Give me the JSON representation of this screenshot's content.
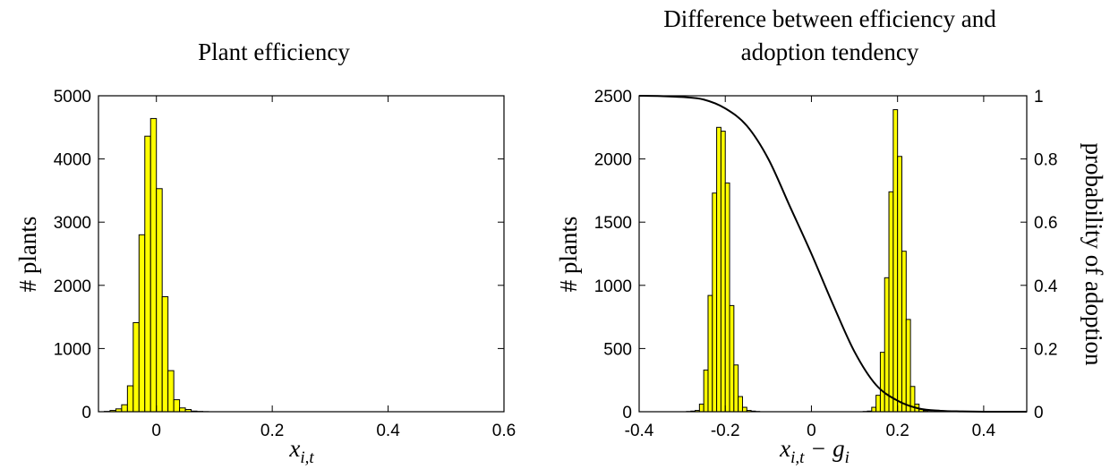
{
  "colors": {
    "bar_fill": "#FFFF00",
    "bar_edge": "#000000",
    "curve": "#000000",
    "background": "#FFFFFF"
  },
  "chart_data": [
    {
      "type": "bar",
      "title": "Plant efficiency",
      "xlabel": "x_{i,t}",
      "xlabel_main": "x",
      "xlabel_sub": "i,t",
      "ylabel": "# plants",
      "xlim": [
        -0.1,
        0.6
      ],
      "ylim": [
        0,
        5000
      ],
      "xticks": [
        "0",
        "0.2",
        "0.4",
        "0.6"
      ],
      "xtick_values": [
        0,
        0.2,
        0.4,
        0.6
      ],
      "yticks": [
        "0",
        "1000",
        "2000",
        "3000",
        "4000",
        "5000"
      ],
      "ytick_values": [
        0,
        1000,
        2000,
        3000,
        4000,
        5000
      ],
      "bin_width": 0.01,
      "bin_centers": [
        -0.085,
        -0.075,
        -0.065,
        -0.055,
        -0.045,
        -0.035,
        -0.025,
        -0.015,
        -0.005,
        0.005,
        0.015,
        0.025,
        0.035,
        0.045,
        0.055,
        0.065,
        0.075,
        0.085
      ],
      "values": [
        5,
        20,
        45,
        110,
        410,
        1410,
        2800,
        4360,
        4640,
        3530,
        1820,
        650,
        190,
        60,
        35,
        10,
        5,
        2
      ],
      "grid": false
    },
    {
      "type": "bar",
      "title": "Difference between efficiency and adoption tendency",
      "title_lines": [
        "Difference between efficiency and",
        "adoption tendency"
      ],
      "xlabel": "x_{i,t} − g_i",
      "xlabel_main": "x",
      "xlabel_sub": "i,t",
      "xlabel_op": " − g",
      "xlabel_sub2": "i",
      "ylabel": "# plants",
      "ylabel_right": "probability of adoption",
      "xlim": [
        -0.4,
        0.5
      ],
      "ylim": [
        0,
        2500
      ],
      "ylim_right": [
        0,
        1
      ],
      "xticks": [
        "-0.4",
        "-0.2",
        "0",
        "0.2",
        "0.4"
      ],
      "xtick_values": [
        -0.4,
        -0.2,
        0,
        0.2,
        0.4
      ],
      "yticks": [
        "0",
        "500",
        "1000",
        "1500",
        "2000",
        "2500"
      ],
      "ytick_values": [
        0,
        500,
        1000,
        1500,
        2000,
        2500
      ],
      "yticks_right": [
        "0",
        "0.2",
        "0.4",
        "0.6",
        "0.8",
        "1"
      ],
      "ytick_values_right": [
        0,
        0.2,
        0.4,
        0.6,
        0.8,
        1
      ],
      "bin_width": 0.01,
      "bin_centers": [
        -0.285,
        -0.275,
        -0.265,
        -0.255,
        -0.245,
        -0.235,
        -0.225,
        -0.215,
        -0.205,
        -0.195,
        -0.185,
        -0.175,
        -0.165,
        -0.155,
        -0.145,
        -0.135,
        -0.125,
        0.125,
        0.135,
        0.145,
        0.155,
        0.165,
        0.175,
        0.185,
        0.195,
        0.205,
        0.215,
        0.225,
        0.235,
        0.245,
        0.255,
        0.265,
        0.275
      ],
      "values": [
        2,
        5,
        10,
        60,
        330,
        920,
        1730,
        2250,
        2220,
        1810,
        840,
        370,
        120,
        35,
        10,
        5,
        2,
        2,
        5,
        35,
        130,
        470,
        1060,
        1740,
        2390,
        2020,
        1270,
        730,
        200,
        60,
        20,
        8,
        2
      ],
      "curve": {
        "name": "probability of adoption",
        "x": [
          -0.4,
          -0.35,
          -0.3,
          -0.25,
          -0.2,
          -0.15,
          -0.1,
          -0.05,
          0,
          0.05,
          0.1,
          0.15,
          0.2,
          0.25,
          0.3,
          0.35,
          0.4,
          0.45,
          0.5
        ],
        "y": [
          1.0,
          0.999,
          0.996,
          0.988,
          0.96,
          0.905,
          0.8,
          0.65,
          0.5,
          0.34,
          0.19,
          0.085,
          0.035,
          0.01,
          0.003,
          0.001,
          0.0,
          0.0,
          0.0
        ]
      },
      "grid": false
    }
  ]
}
